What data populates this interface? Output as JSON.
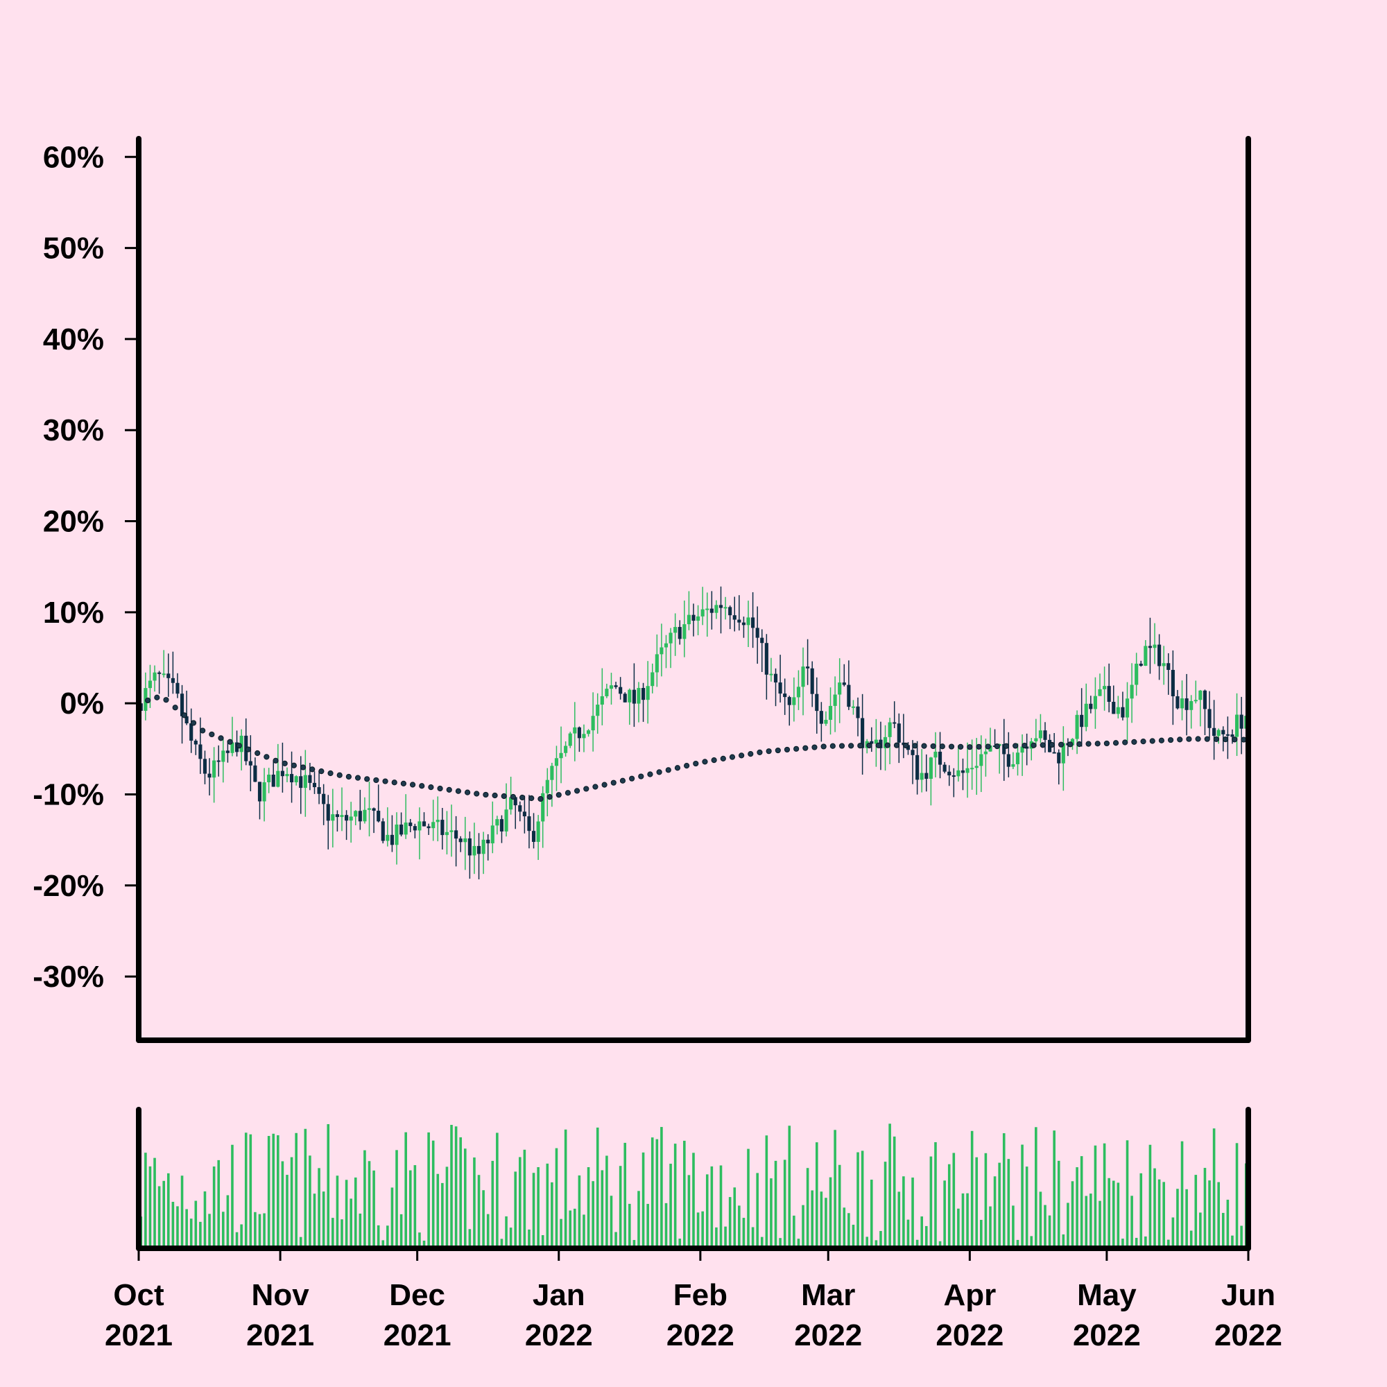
{
  "colors": {
    "background": "#ffe1ee",
    "axis": "#000000",
    "up_candle": "#2dbd5f",
    "down_candle": "#0c2d44",
    "volume": "#2dbd5f",
    "moving_average": "#1f3a4d"
  },
  "chart_data": {
    "type": "candlestick",
    "title": "",
    "xlabel": "",
    "ylabel": "",
    "y_unit": "percent",
    "ylim": [
      -37,
      62
    ],
    "y_ticks": [
      -30,
      -20,
      -10,
      0,
      10,
      20,
      30,
      40,
      50,
      60
    ],
    "y_tick_labels": [
      "-30%",
      "-20%",
      "-10%",
      "0%",
      "10%",
      "20%",
      "30%",
      "40%",
      "50%",
      "60%"
    ],
    "x_range": [
      "2021-10-01",
      "2022-06-01"
    ],
    "x_ticks": [
      {
        "date": "2021-10-01",
        "month": "Oct",
        "year": "2021"
      },
      {
        "date": "2021-11-01",
        "month": "Nov",
        "year": "2021"
      },
      {
        "date": "2021-12-01",
        "month": "Dec",
        "year": "2021"
      },
      {
        "date": "2022-01-01",
        "month": "Jan",
        "year": "2022"
      },
      {
        "date": "2022-02-01",
        "month": "Feb",
        "year": "2022"
      },
      {
        "date": "2022-03-01",
        "month": "Mar",
        "year": "2022"
      },
      {
        "date": "2022-04-01",
        "month": "Apr",
        "year": "2022"
      },
      {
        "date": "2022-05-01",
        "month": "May",
        "year": "2022"
      },
      {
        "date": "2022-06-01",
        "month": "Jun",
        "year": "2022"
      }
    ],
    "close_path": [
      [
        "2021-10-01",
        0
      ],
      [
        "2021-10-05",
        3
      ],
      [
        "2021-10-09",
        1
      ],
      [
        "2021-10-13",
        -5
      ],
      [
        "2021-10-16",
        -8
      ],
      [
        "2021-10-20",
        -6
      ],
      [
        "2021-10-23",
        -4
      ],
      [
        "2021-10-27",
        -10
      ],
      [
        "2021-11-02",
        -7
      ],
      [
        "2021-11-07",
        -9
      ],
      [
        "2021-11-11",
        -12
      ],
      [
        "2021-11-14",
        -13
      ],
      [
        "2021-11-20",
        -12
      ],
      [
        "2021-11-25",
        -15
      ],
      [
        "2021-12-01",
        -13
      ],
      [
        "2021-12-06",
        -14
      ],
      [
        "2021-12-11",
        -15
      ],
      [
        "2021-12-14",
        -17
      ],
      [
        "2021-12-18",
        -14
      ],
      [
        "2021-12-22",
        -11
      ],
      [
        "2021-12-26",
        -15
      ],
      [
        "2021-12-30",
        -8
      ],
      [
        "2022-01-04",
        -4
      ],
      [
        "2022-01-09",
        -1
      ],
      [
        "2022-01-13",
        2
      ],
      [
        "2022-01-18",
        0
      ],
      [
        "2022-01-23",
        5
      ],
      [
        "2022-01-27",
        8
      ],
      [
        "2022-02-02",
        10
      ],
      [
        "2022-02-06",
        11
      ],
      [
        "2022-02-12",
        9
      ],
      [
        "2022-02-17",
        2
      ],
      [
        "2022-02-21",
        -1
      ],
      [
        "2022-02-24",
        4
      ],
      [
        "2022-02-28",
        -2
      ],
      [
        "2022-03-04",
        3
      ],
      [
        "2022-03-10",
        -6
      ],
      [
        "2022-03-15",
        -2
      ],
      [
        "2022-03-21",
        -8
      ],
      [
        "2022-03-25",
        -6
      ],
      [
        "2022-03-30",
        -8
      ],
      [
        "2022-04-05",
        -5
      ],
      [
        "2022-04-10",
        -6
      ],
      [
        "2022-04-15",
        -3
      ],
      [
        "2022-04-20",
        -6
      ],
      [
        "2022-04-25",
        -2
      ],
      [
        "2022-04-30",
        1
      ],
      [
        "2022-05-05",
        -1
      ],
      [
        "2022-05-09",
        6
      ],
      [
        "2022-05-13",
        5
      ],
      [
        "2022-05-17",
        0
      ],
      [
        "2022-05-21",
        1
      ],
      [
        "2022-05-25",
        -4
      ],
      [
        "2022-05-28",
        -3
      ],
      [
        "2022-06-01",
        -1
      ]
    ],
    "moving_average": [
      [
        "2021-10-01",
        0
      ],
      [
        "2021-10-06",
        0.8
      ],
      [
        "2021-10-15",
        -3
      ],
      [
        "2021-11-01",
        -6.5
      ],
      [
        "2021-11-15",
        -8
      ],
      [
        "2021-12-01",
        -9
      ],
      [
        "2021-12-15",
        -10
      ],
      [
        "2021-12-28",
        -10.5
      ],
      [
        "2022-01-15",
        -8.5
      ],
      [
        "2022-02-01",
        -6.5
      ],
      [
        "2022-02-15",
        -5.3
      ],
      [
        "2022-03-01",
        -4.7
      ],
      [
        "2022-03-15",
        -4.6
      ],
      [
        "2022-04-01",
        -4.8
      ],
      [
        "2022-05-01",
        -4.4
      ],
      [
        "2022-05-20",
        -3.9
      ],
      [
        "2022-06-01",
        -4
      ]
    ],
    "volume_note": "daily volume bars, unlabeled scale"
  }
}
